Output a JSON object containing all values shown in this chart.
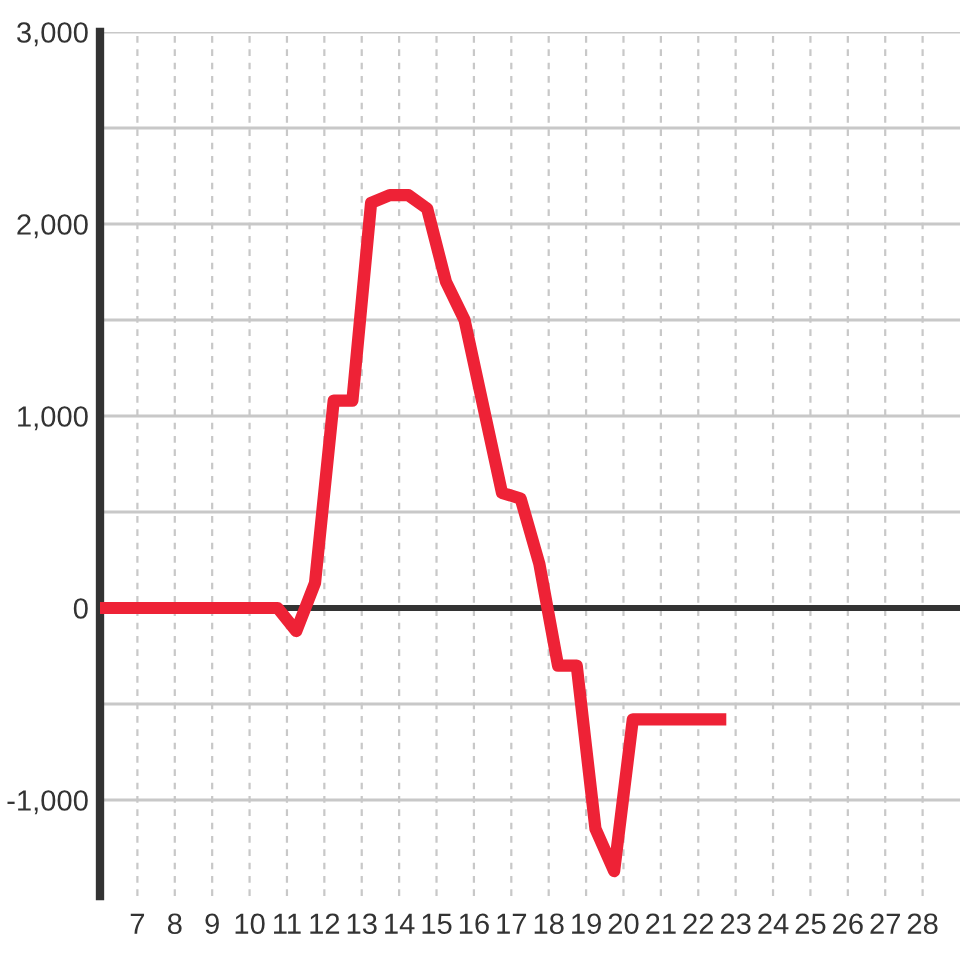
{
  "chart_data": {
    "type": "line",
    "x": [
      6,
      10.75,
      11.25,
      11.75,
      12.25,
      12.75,
      13.25,
      13.75,
      14.25,
      14.75,
      15.25,
      15.75,
      16.75,
      17.25,
      17.75,
      18.25,
      18.75,
      19.25,
      19.75,
      20.25,
      22.75
    ],
    "values": [
      0,
      0,
      -120,
      130,
      1080,
      1080,
      2110,
      2150,
      2150,
      2080,
      1700,
      1500,
      600,
      570,
      230,
      -300,
      -300,
      -1150,
      -1370,
      -580,
      -580
    ],
    "color": "#ee2236",
    "line_style": "solid",
    "xlim": [
      6,
      29
    ],
    "xticks": [
      7,
      8,
      9,
      10,
      11,
      12,
      13,
      14,
      15,
      16,
      17,
      18,
      19,
      20,
      21,
      22,
      23,
      24,
      25,
      26,
      27,
      28
    ],
    "ylim": [
      -1500,
      3000
    ],
    "yticks": [
      {
        "value": -1000,
        "label": "-1,000"
      },
      {
        "value": -500,
        "label": null
      },
      {
        "value": 0,
        "label": "0"
      },
      {
        "value": 500,
        "label": null
      },
      {
        "value": 1000,
        "label": "1,000"
      },
      {
        "value": 1500,
        "label": null
      },
      {
        "value": 2000,
        "label": "2,000"
      },
      {
        "value": 2500,
        "label": null
      },
      {
        "value": 3000,
        "label": "3,000"
      }
    ],
    "grid": true,
    "ref_lines": [
      {
        "axis": "y",
        "value": 0,
        "color": "#333333"
      }
    ]
  }
}
